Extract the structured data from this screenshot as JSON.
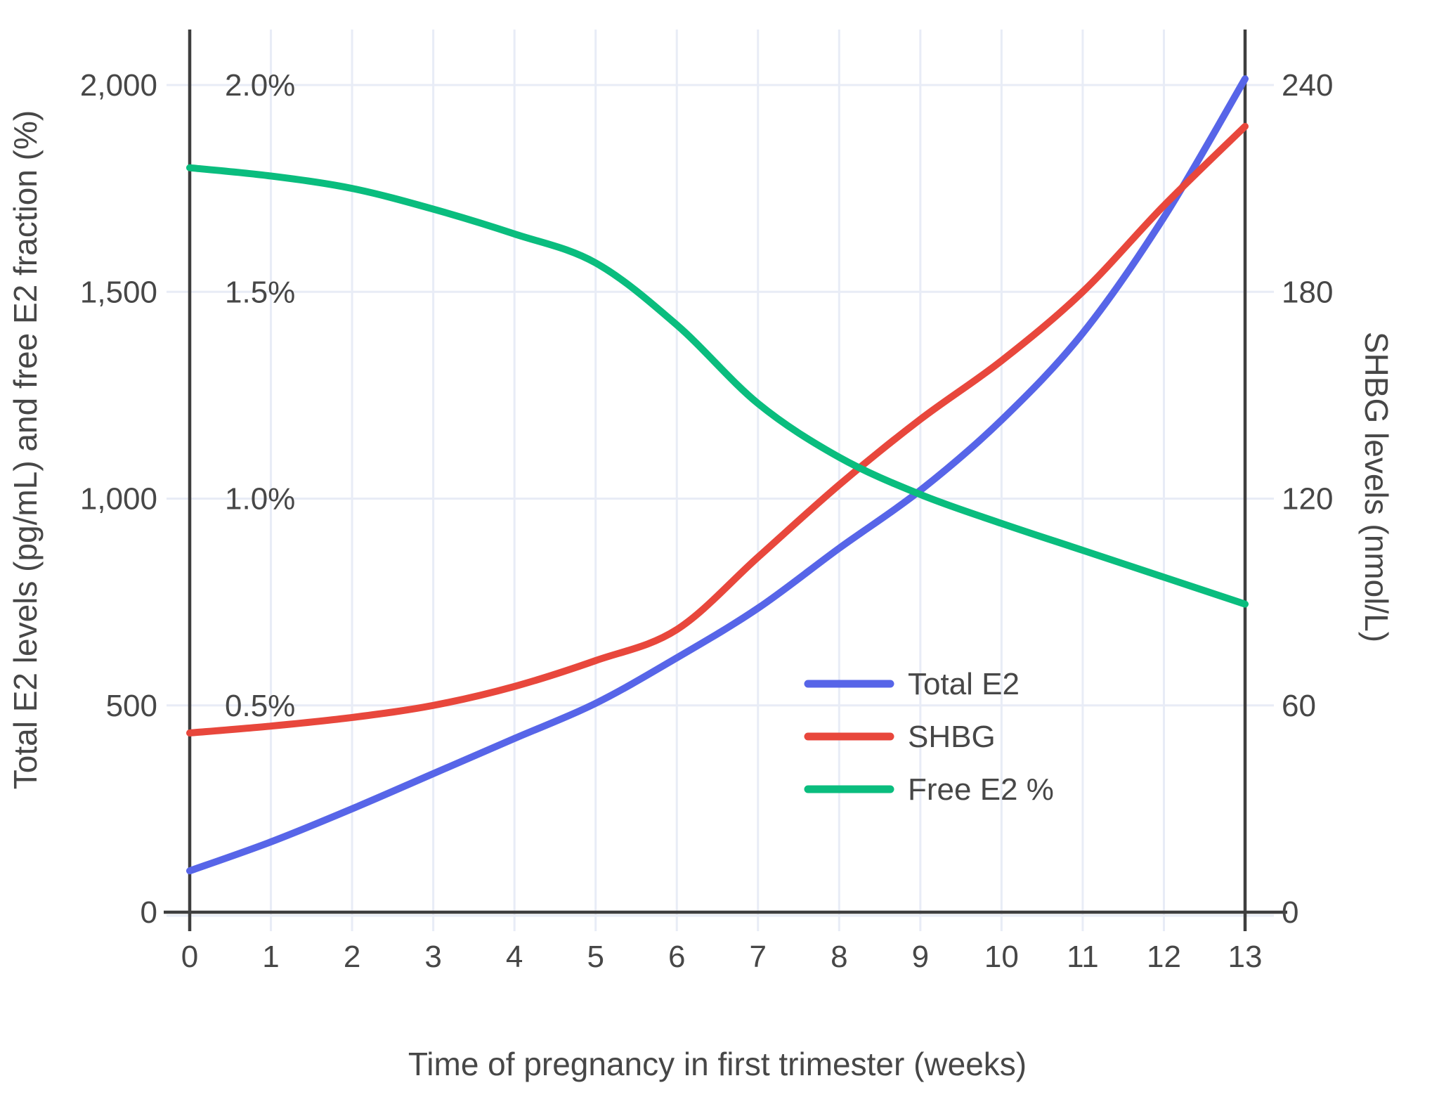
{
  "chart_data": {
    "type": "line",
    "title": "",
    "xlabel": "Time of pregnancy in first trimester (weeks)",
    "ylabel_left": "Total E2 levels (pg/mL) and free E2 fraction (%)",
    "ylabel_right": "SHBG levels (nmol/L)",
    "x": [
      0,
      1,
      2,
      3,
      4,
      5,
      6,
      7,
      8,
      9,
      10,
      11,
      12,
      13
    ],
    "x_tick_labels": [
      "0",
      "1",
      "2",
      "3",
      "4",
      "5",
      "6",
      "7",
      "8",
      "9",
      "10",
      "11",
      "12",
      "13"
    ],
    "xlim": [
      0,
      13
    ],
    "ylim_left": [
      0,
      2000
    ],
    "ylim_right": [
      0,
      240
    ],
    "grid": true,
    "left_axis_ticks": [
      {
        "value": 0,
        "label": "0"
      },
      {
        "value": 500,
        "label": "500"
      },
      {
        "value": 1000,
        "label": "1,000"
      },
      {
        "value": 1500,
        "label": "1,500"
      },
      {
        "value": 2000,
        "label": "2,000"
      }
    ],
    "right_axis_ticks": [
      {
        "value": 0,
        "label": "0"
      },
      {
        "value": 60,
        "label": "60"
      },
      {
        "value": 120,
        "label": "120"
      },
      {
        "value": 180,
        "label": "180"
      },
      {
        "value": 240,
        "label": "240"
      }
    ],
    "free_e2_inline_labels": [
      {
        "value": 2000,
        "label": "2.0%"
      },
      {
        "value": 1500,
        "label": "1.5%"
      },
      {
        "value": 1000,
        "label": "1.0%"
      },
      {
        "value": 500,
        "label": "0.5%"
      }
    ],
    "legend_position": "inside lower-right",
    "series": [
      {
        "name": "Total E2",
        "unit": "pg/mL",
        "axis": "left",
        "color": "#5765e8",
        "values": [
          100,
          170,
          250,
          335,
          420,
          505,
          615,
          735,
          880,
          1020,
          1190,
          1400,
          1680,
          2015
        ]
      },
      {
        "name": "SHBG",
        "unit": "nmol/L",
        "axis": "right",
        "color": "#e8473c",
        "values": [
          52,
          54,
          56.5,
          60,
          65.5,
          73,
          82,
          103,
          124,
          143,
          160,
          180,
          205,
          228
        ]
      },
      {
        "name": "Free E2 %",
        "unit": "%",
        "axis": "left_pct",
        "color": "#0abd7e",
        "values": [
          1.8,
          1.78,
          1.75,
          1.7,
          1.64,
          1.57,
          1.42,
          1.23,
          1.1,
          1.01,
          0.94,
          0.875,
          0.81,
          0.745
        ]
      }
    ]
  },
  "colors": {
    "grid": "#e8ecf6",
    "axis": "#3e3e3e",
    "text": "#474747",
    "background": "#ffffff"
  }
}
